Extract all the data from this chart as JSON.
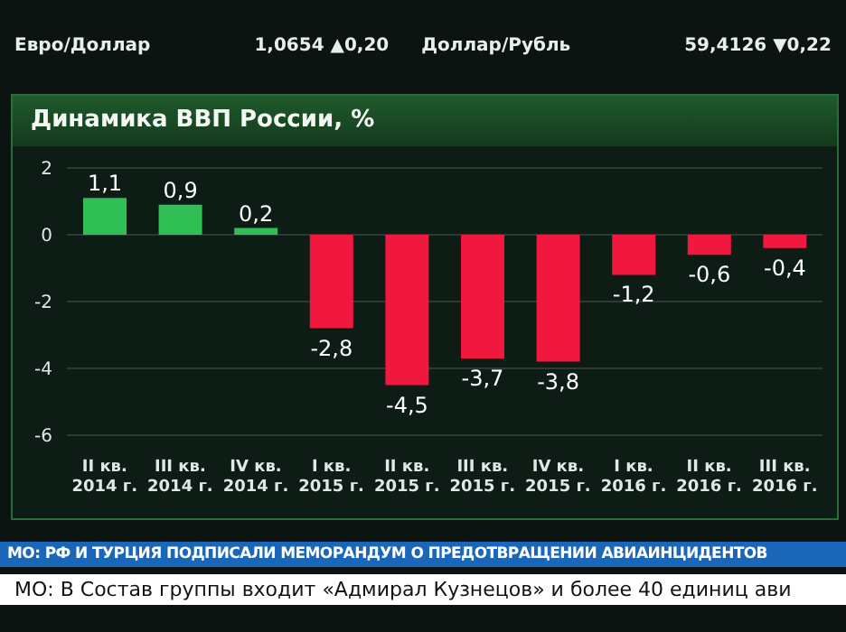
{
  "chart_data": {
    "type": "bar",
    "title": "Динамика ВВП России, %",
    "categories": [
      "II кв.\n2014 г.",
      "III кв.\n2014 г.",
      "IV кв.\n2014 г.",
      "I кв.\n2015 г.",
      "II кв.\n2015 г.",
      "III кв.\n2015 г.",
      "IV кв.\n2015 г.",
      "I кв.\n2016 г.",
      "II кв.\n2016 г.",
      "III кв.\n2016 г."
    ],
    "values": [
      1.1,
      0.9,
      0.2,
      -2.8,
      -4.5,
      -3.7,
      -3.8,
      -1.2,
      -0.6,
      -0.4
    ],
    "colors": [
      "#2fbf55",
      "#2fbf55",
      "#2fbf55",
      "#f0183f",
      "#f0183f",
      "#f0183f",
      "#f0183f",
      "#f0183f",
      "#f0183f",
      "#f0183f"
    ],
    "value_labels": [
      "1,1",
      "0,9",
      "0,2",
      "-2,8",
      "-4,5",
      "-3,7",
      "-3,8",
      "-1,2",
      "-0,6",
      "-0,4"
    ],
    "ylim": [
      -6,
      2
    ],
    "yticks": [
      2,
      0,
      -2,
      -4,
      -6
    ],
    "grid": "y",
    "annotations": [
      "Евро/Доллар",
      "1,0654 ▲0,20",
      "Доллар/Рубль",
      "59,4126 ▼0,22",
      "МО: РФ И ТУРЦИЯ ПОДПИСАЛИ МЕМОРАНДУМ О ПРЕДОТВРАЩЕНИИ АВИАИНЦИДЕНТОВ",
      "МО: В Состав группы входит «Адмирал Кузнецов» и более 40 единиц ави"
    ]
  }
}
